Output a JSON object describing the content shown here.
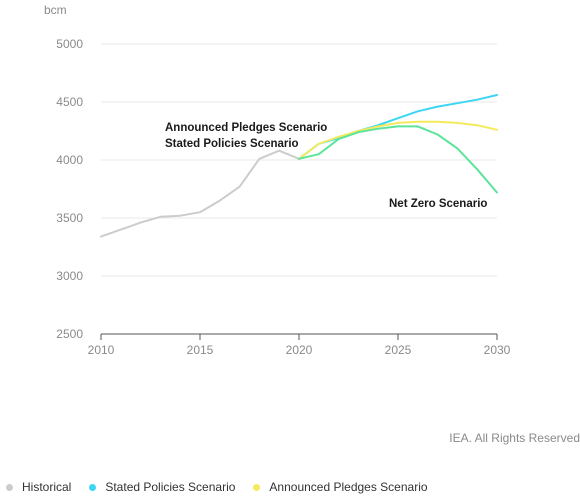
{
  "chart_data": {
    "type": "line",
    "unit_label": "bcm",
    "ylim": [
      2500,
      5000
    ],
    "xlim": [
      2010,
      2030
    ],
    "y_ticks": [
      "2500",
      "3000",
      "3500",
      "4000",
      "4500",
      "5000"
    ],
    "x_ticks": [
      "2010",
      "2015",
      "2020",
      "2025",
      "2030"
    ],
    "grid": true,
    "series": [
      {
        "name": "Historical",
        "color": "#cccccc",
        "x": [
          2010,
          2011,
          2012,
          2013,
          2014,
          2015,
          2016,
          2017,
          2018,
          2019,
          2020
        ],
        "y": [
          3340,
          3400,
          3460,
          3510,
          3520,
          3550,
          3650,
          3770,
          4010,
          4080,
          4010
        ]
      },
      {
        "name": "Stated Policies Scenario",
        "color": "#3dd6f2",
        "x": [
          2020,
          2021,
          2022,
          2023,
          2024,
          2025,
          2026,
          2027,
          2028,
          2029,
          2030
        ],
        "y": [
          4010,
          4140,
          4190,
          4250,
          4300,
          4360,
          4420,
          4460,
          4490,
          4520,
          4560
        ]
      },
      {
        "name": "Announced Pledges Scenario",
        "color": "#f5ea5c",
        "x": [
          2020,
          2021,
          2022,
          2023,
          2024,
          2025,
          2026,
          2027,
          2028,
          2029,
          2030
        ],
        "y": [
          4010,
          4140,
          4200,
          4250,
          4290,
          4320,
          4330,
          4330,
          4320,
          4300,
          4260
        ]
      },
      {
        "name": "Net Zero Scenario",
        "color": "#5ce49a",
        "x": [
          2020,
          2021,
          2022,
          2023,
          2024,
          2025,
          2026,
          2027,
          2028,
          2029,
          2030
        ],
        "y": [
          4010,
          4050,
          4180,
          4240,
          4270,
          4290,
          4290,
          4220,
          4100,
          3920,
          3720
        ]
      }
    ],
    "annotations": [
      {
        "text": "Announced Pledges Scenario"
      },
      {
        "text": "Stated Policies Scenario"
      },
      {
        "text": "Net Zero Scenario"
      }
    ],
    "legend": {
      "position": "bottom",
      "items": [
        {
          "label": "Historical",
          "color": "#cccccc"
        },
        {
          "label": "Stated Policies Scenario",
          "color": "#3dd6f2"
        },
        {
          "label": "Announced Pledges Scenario",
          "color": "#f5ea5c"
        }
      ]
    }
  },
  "credit": "IEA. All Rights Reserved"
}
